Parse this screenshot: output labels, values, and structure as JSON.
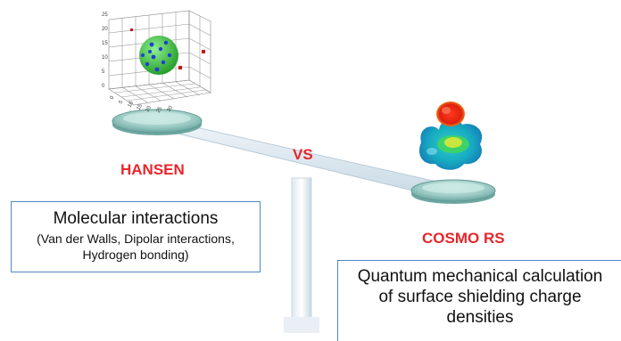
{
  "left_method": {
    "name": "HANSEN"
  },
  "right_method": {
    "name": "COSMO RS"
  },
  "versus": "VS",
  "hansen_box": {
    "title": "Molecular interactions",
    "detail_line1": "(Van der Walls, Dipolar interactions,",
    "detail_line2": "Hydrogen bonding)"
  },
  "cosmo_box": {
    "line1": "Quantum mechanical calculation",
    "line2": "of surface shielding charge",
    "line3": "densities"
  },
  "hansen_plot": {
    "tick_labels": [
      "25",
      "20",
      "15",
      "10",
      "5",
      "0",
      "0",
      "5",
      "10",
      "15",
      "20",
      "25",
      "30"
    ]
  },
  "colors": {
    "label_red": "#e8262b",
    "box_border": "#4f88c6",
    "plate": "#8fc3bb",
    "sphere": "#3cc13c",
    "points": "#1f3fd6"
  }
}
